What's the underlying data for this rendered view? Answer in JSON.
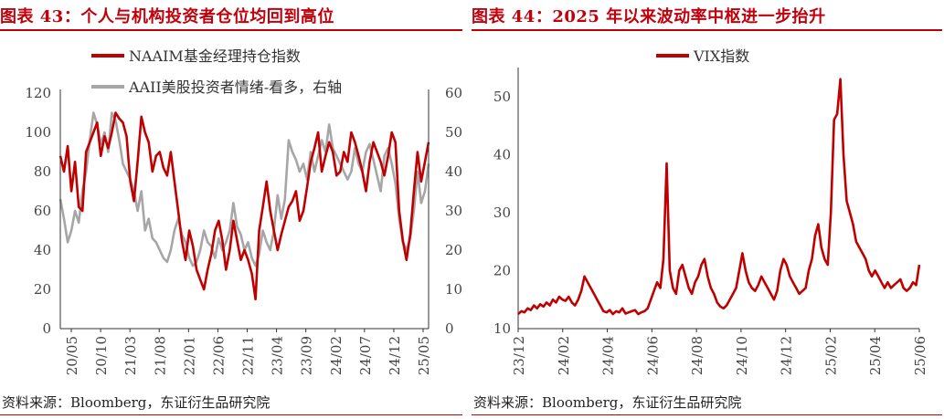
{
  "left": {
    "title": "图表 43：个人与机构投资者仓位均回到高位",
    "source": "资料来源：Bloomberg，东证衍生品研究院",
    "chart_data": {
      "type": "line",
      "x_ticks": [
        "20/05",
        "20/10",
        "21/03",
        "21/08",
        "22/01",
        "22/06",
        "22/11",
        "23/04",
        "23/09",
        "24/02",
        "24/07",
        "24/12",
        "25/05"
      ],
      "y_left": {
        "ticks": [
          0,
          20,
          40,
          60,
          80,
          100,
          120
        ],
        "ylim": [
          0,
          120
        ]
      },
      "y_right": {
        "ticks": [
          0,
          10,
          20,
          30,
          40,
          50,
          60
        ],
        "ylim": [
          0,
          60
        ]
      },
      "legend_position": "top",
      "series": [
        {
          "name": "NAAIM基金经理持仓指数",
          "axis": "left",
          "color": "#c00000",
          "values": [
            88,
            80,
            93,
            70,
            85,
            62,
            60,
            90,
            95,
            100,
            105,
            88,
            98,
            92,
            100,
            110,
            107,
            105,
            98,
            75,
            65,
            85,
            108,
            100,
            95,
            80,
            88,
            90,
            82,
            78,
            90,
            75,
            60,
            45,
            35,
            50,
            42,
            30,
            25,
            20,
            30,
            38,
            50,
            55,
            45,
            30,
            40,
            55,
            45,
            35,
            40,
            35,
            28,
            15,
            50,
            62,
            75,
            60,
            50,
            40,
            48,
            55,
            62,
            65,
            70,
            55,
            60,
            72,
            85,
            92,
            100,
            80,
            88,
            95,
            90,
            78,
            80,
            90,
            85,
            100,
            95,
            88,
            80,
            70,
            85,
            95,
            90,
            85,
            78,
            88,
            100,
            95,
            60,
            45,
            35,
            48,
            70,
            90,
            75,
            85,
            95
          ]
        },
        {
          "name": "AAII美股投资者情绪-看多，右轴",
          "axis": "right",
          "color": "#a6a6a6",
          "values": [
            33,
            28,
            22,
            25,
            30,
            27,
            35,
            40,
            48,
            55,
            52,
            47,
            50,
            45,
            55,
            53,
            48,
            42,
            40,
            38,
            35,
            30,
            35,
            25,
            28,
            23,
            22,
            20,
            18,
            17,
            20,
            25,
            28,
            24,
            22,
            18,
            16,
            17,
            20,
            25,
            22,
            21,
            18,
            23,
            20,
            22,
            25,
            32,
            26,
            24,
            20,
            22,
            18,
            16,
            19,
            25,
            22,
            20,
            25,
            34,
            28,
            33,
            48,
            45,
            43,
            40,
            42,
            38,
            45,
            40,
            44,
            48,
            45,
            52,
            46,
            44,
            42,
            40,
            38,
            40,
            46,
            42,
            40,
            45,
            47,
            43,
            39,
            35,
            44,
            46,
            42,
            37,
            28,
            22,
            20,
            23,
            30,
            40,
            32,
            35,
            42
          ]
        }
      ]
    }
  },
  "right": {
    "title": "图表 44：2025 年以来波动率中枢进一步抬升",
    "source": "资料来源：Bloomberg，东证衍生品研究院",
    "chart_data": {
      "type": "line",
      "x_ticks": [
        "23/12",
        "24/02",
        "24/04",
        "24/06",
        "24/08",
        "24/10",
        "24/12",
        "25/02",
        "25/04",
        "25/06"
      ],
      "y": {
        "ticks": [
          10,
          20,
          30,
          40,
          50
        ],
        "ylim": [
          10,
          55
        ]
      },
      "legend_position": "top",
      "series": [
        {
          "name": "VIX指数",
          "color": "#c00000",
          "values": [
            12.5,
            13,
            12.8,
            13.5,
            13.2,
            14,
            13.5,
            14.2,
            13.8,
            14.5,
            14,
            15,
            14.5,
            15.5,
            15,
            14.8,
            15.5,
            14.5,
            14,
            15,
            16.5,
            19,
            18,
            17,
            16,
            15,
            14,
            13,
            12.8,
            13.2,
            12.5,
            13,
            12.8,
            13.5,
            12.6,
            12.8,
            13,
            13.2,
            12.5,
            12.8,
            13,
            13.5,
            15,
            16.5,
            18,
            17,
            22,
            38.5,
            20,
            17,
            16,
            20,
            21,
            19,
            17,
            16,
            18,
            19,
            21,
            22,
            19,
            17,
            16,
            14.5,
            13.8,
            13.5,
            14,
            15,
            16,
            17,
            20,
            23,
            20,
            18,
            17,
            16.5,
            17.5,
            19,
            18,
            17,
            16,
            15,
            16.5,
            20,
            22,
            21,
            19,
            18,
            17,
            16,
            16.5,
            17,
            20,
            22,
            26,
            28,
            24,
            22,
            21,
            30,
            46,
            47,
            53,
            40,
            32,
            30,
            28,
            25,
            24,
            23,
            22,
            20,
            19,
            20,
            19,
            18,
            17,
            18,
            17,
            17.5,
            18,
            18.5,
            17,
            16.5,
            17,
            18,
            17.5,
            21
          ]
        }
      ]
    }
  }
}
